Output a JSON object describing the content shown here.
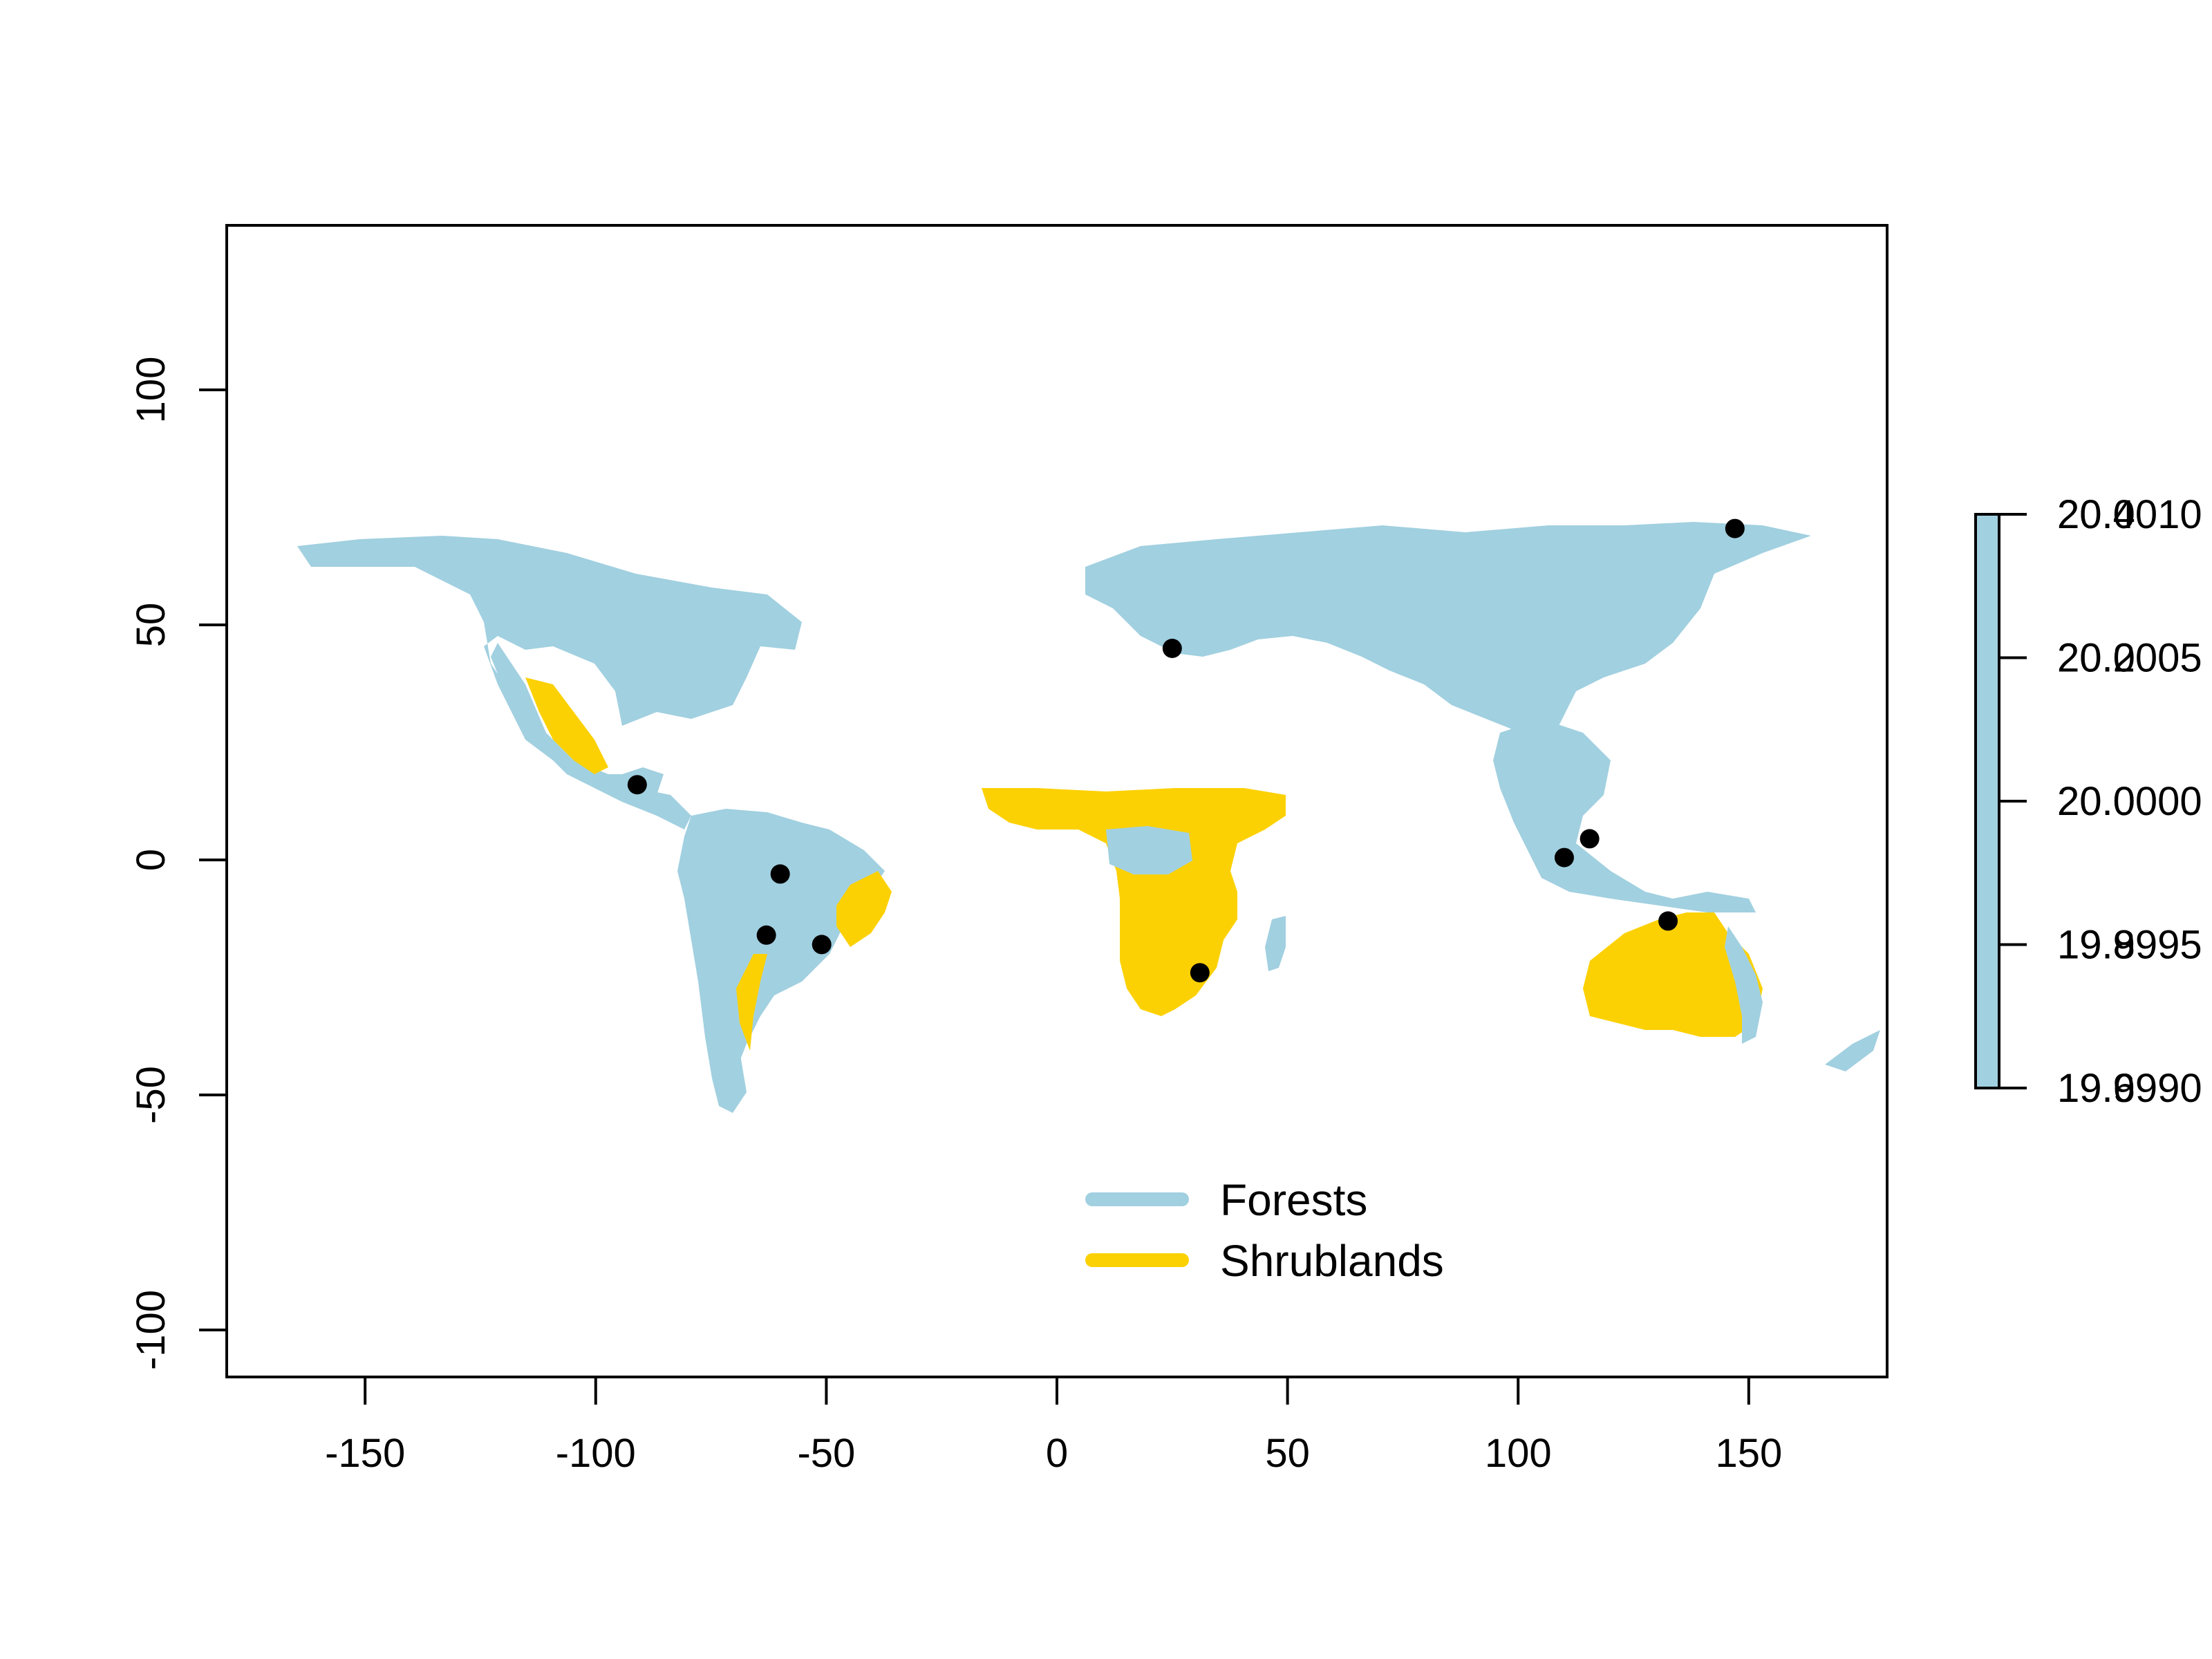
{
  "chart_data": {
    "type": "scatter",
    "title": "",
    "xlabel": "",
    "ylabel": "",
    "xlim": [
      -180,
      180
    ],
    "ylim": [
      -110,
      135
    ],
    "grid": false,
    "x_ticks": [
      -150,
      -100,
      -50,
      0,
      50,
      100,
      150
    ],
    "y_ticks": [
      100,
      50,
      0,
      -50,
      -100
    ],
    "x_tick_labels": [
      "-150",
      "-100",
      "-50",
      "0",
      "50",
      "100",
      "150"
    ],
    "y_tick_labels": [
      "100",
      "50",
      "0",
      "-50",
      "-100"
    ],
    "legend": {
      "position": "bottom-center",
      "entries": [
        {
          "label": "Forests",
          "color": "#a1d0e0"
        },
        {
          "label": "Shrublands",
          "color": "#fcd104"
        }
      ]
    },
    "points": [
      {
        "x": -91,
        "y": 16
      },
      {
        "x": -60,
        "y": -3
      },
      {
        "x": -63,
        "y": -16
      },
      {
        "x": -51,
        "y": -18
      },
      {
        "x": 25,
        "y": 45
      },
      {
        "x": 31,
        "y": -24
      },
      {
        "x": 110,
        "y": 0.5
      },
      {
        "x": 115.5,
        "y": 4.5
      },
      {
        "x": 132.5,
        "y": -13
      },
      {
        "x": 147,
        "y": 70.5
      }
    ],
    "colorbar": {
      "color": "#a1d0e0",
      "tick_labels_a": [
        "20.0010",
        "20.0005",
        "20.0000",
        "19.9995",
        "19.9990"
      ],
      "tick_labels_b": [
        "20.4",
        "20.2",
        "20.0",
        "19.8",
        "19.6"
      ]
    },
    "colors": {
      "forest": "#a1d0e0",
      "shrubland": "#fcd104",
      "point": "#000000"
    }
  }
}
